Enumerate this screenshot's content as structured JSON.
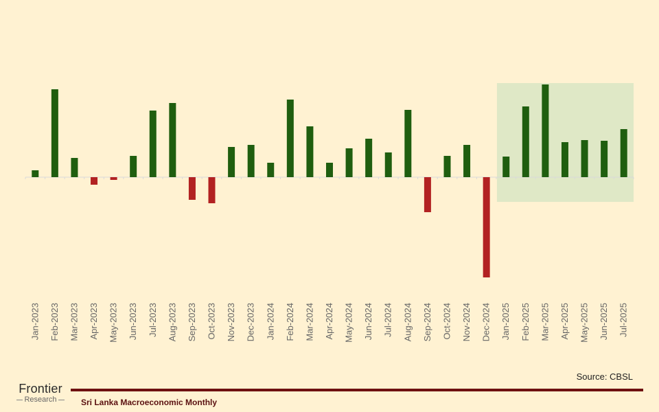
{
  "chart_data": {
    "type": "bar",
    "categories": [
      "Jan-2023",
      "Feb-2023",
      "Mar-2023",
      "Apr-2023",
      "May-2023",
      "Jun-2023",
      "Jul-2023",
      "Aug-2023",
      "Sep-2023",
      "Oct-2023",
      "Nov-2023",
      "Dec-2023",
      "Jan-2024",
      "Feb-2024",
      "Mar-2024",
      "Apr-2024",
      "May-2024",
      "Jun-2024",
      "Jul-2024",
      "Aug-2024",
      "Sep-2024",
      "Oct-2024",
      "Nov-2024",
      "Dec-2024",
      "Jan-2025",
      "Feb-2025",
      "Mar-2025",
      "Apr-2025",
      "May-2025",
      "Jun-2025",
      "Jul-2025"
    ],
    "values": [
      10,
      128,
      28,
      -11,
      -4,
      31,
      97,
      108,
      -33,
      -38,
      44,
      47,
      21,
      113,
      74,
      21,
      42,
      56,
      36,
      98,
      -51,
      31,
      47,
      -146,
      30,
      103,
      135,
      51,
      54,
      53,
      70
    ],
    "title": "",
    "xlabel": "",
    "ylabel": "",
    "ylim": [
      -180,
      200
    ],
    "highlight_range": [
      "Jan-2025",
      "Jul-2025"
    ],
    "colors": {
      "positive": "#1f5e0f",
      "negative": "#b22222",
      "highlight": "#dfe8c6",
      "background": "#fff2d2"
    }
  },
  "source": "Source: CBSL",
  "footer": {
    "logo_main": "Frontier",
    "logo_sub": "Research",
    "title": "Sri Lanka Macroeconomic Monthly"
  }
}
